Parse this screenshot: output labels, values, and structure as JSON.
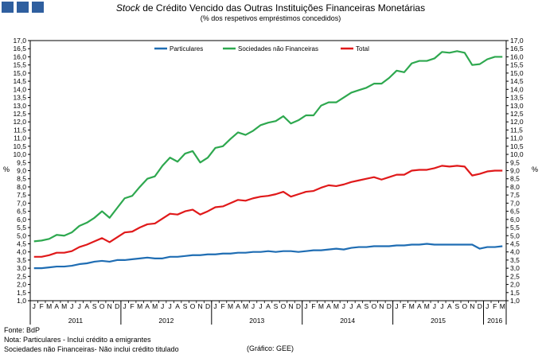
{
  "header": {
    "title_italic": "Stock",
    "title_rest": " de Crédito Vencido das Outras Instituições Financeiras Monetárias",
    "subtitle": "(% dos respetivos empréstimos concedidos)"
  },
  "colors": {
    "squares": "#2f5f9f",
    "particulares": "#1f6db3",
    "sociedades": "#2ea84f",
    "total": "#e0191a"
  },
  "footer": {
    "source": "Fonte: BdP",
    "note1": "Nota: Particulares - Inclui crédito a emigrantes",
    "note2": "Sociedades não Financeiras- Não inclui crédito titulado",
    "graphic": "(Gráfico: GEE)"
  },
  "chart_data": {
    "type": "line",
    "ylim": [
      1.0,
      17.0
    ],
    "ytick_step": 0.5,
    "ylabel_left": "%",
    "ylabel_right": "%",
    "x": [
      "Jan-2011",
      "Feb-2011",
      "Mar-2011",
      "Apr-2011",
      "May-2011",
      "Jun-2011",
      "Jul-2011",
      "Aug-2011",
      "Sep-2011",
      "Oct-2011",
      "Nov-2011",
      "Dec-2011",
      "Jan-2012",
      "Feb-2012",
      "Mar-2012",
      "Apr-2012",
      "May-2012",
      "Jun-2012",
      "Jul-2012",
      "Aug-2012",
      "Sep-2012",
      "Oct-2012",
      "Nov-2012",
      "Dec-2012",
      "Jan-2013",
      "Feb-2013",
      "Mar-2013",
      "Apr-2013",
      "May-2013",
      "Jun-2013",
      "Jul-2013",
      "Aug-2013",
      "Sep-2013",
      "Oct-2013",
      "Nov-2013",
      "Dec-2013",
      "Jan-2014",
      "Feb-2014",
      "Mar-2014",
      "Apr-2014",
      "May-2014",
      "Jun-2014",
      "Jul-2014",
      "Aug-2014",
      "Sep-2014",
      "Oct-2014",
      "Nov-2014",
      "Dec-2014",
      "Jan-2015",
      "Feb-2015",
      "Mar-2015",
      "Apr-2015",
      "May-2015",
      "Jun-2015",
      "Jul-2015",
      "Aug-2015",
      "Sep-2015",
      "Oct-2015",
      "Nov-2015",
      "Dec-2015",
      "Jan-2016",
      "Feb-2016",
      "Mar-2016"
    ],
    "month_labels": [
      "J",
      "F",
      "M",
      "A",
      "M",
      "J",
      "J",
      "A",
      "S",
      "O",
      "N",
      "D",
      "J",
      "F",
      "M",
      "A",
      "M",
      "J",
      "J",
      "A",
      "S",
      "O",
      "N",
      "D",
      "J",
      "F",
      "M",
      "A",
      "M",
      "J",
      "J",
      "A",
      "S",
      "O",
      "N",
      "D",
      "J",
      "F",
      "M",
      "A",
      "M",
      "J",
      "J",
      "A",
      "S",
      "O",
      "N",
      "D",
      "J",
      "F",
      "M",
      "A",
      "M",
      "J",
      "J",
      "A",
      "S",
      "O",
      "N",
      "D",
      "J",
      "F",
      "M"
    ],
    "years": [
      {
        "label": "2011",
        "start": 0,
        "count": 12
      },
      {
        "label": "2012",
        "start": 12,
        "count": 12
      },
      {
        "label": "2013",
        "start": 24,
        "count": 12
      },
      {
        "label": "2014",
        "start": 36,
        "count": 12
      },
      {
        "label": "2015",
        "start": 48,
        "count": 12
      },
      {
        "label": "2016",
        "start": 60,
        "count": 3
      }
    ],
    "legend_placement": "top-center",
    "series": [
      {
        "name": "Particulares",
        "color": "#1f6db3",
        "values": [
          3.0,
          3.0,
          3.05,
          3.1,
          3.1,
          3.15,
          3.25,
          3.3,
          3.4,
          3.45,
          3.4,
          3.5,
          3.5,
          3.55,
          3.6,
          3.65,
          3.6,
          3.6,
          3.7,
          3.7,
          3.75,
          3.8,
          3.8,
          3.85,
          3.85,
          3.9,
          3.9,
          3.95,
          3.95,
          4.0,
          4.0,
          4.05,
          4.0,
          4.05,
          4.05,
          4.0,
          4.05,
          4.1,
          4.1,
          4.15,
          4.2,
          4.15,
          4.25,
          4.3,
          4.3,
          4.35,
          4.35,
          4.35,
          4.4,
          4.4,
          4.45,
          4.45,
          4.5,
          4.45,
          4.45,
          4.45,
          4.45,
          4.45,
          4.45,
          4.2,
          4.3,
          4.3,
          4.35
        ]
      },
      {
        "name": "Sociedades não Financeiras",
        "color": "#2ea84f",
        "values": [
          4.65,
          4.7,
          4.8,
          5.05,
          5.0,
          5.2,
          5.6,
          5.8,
          6.1,
          6.5,
          6.1,
          6.7,
          7.3,
          7.45,
          8.0,
          8.5,
          8.65,
          9.3,
          9.8,
          9.55,
          10.05,
          10.2,
          9.5,
          9.8,
          10.4,
          10.5,
          10.95,
          11.35,
          11.2,
          11.45,
          11.8,
          11.95,
          12.05,
          12.35,
          11.9,
          12.1,
          12.4,
          12.4,
          13.0,
          13.2,
          13.2,
          13.5,
          13.8,
          13.95,
          14.1,
          14.35,
          14.35,
          14.7,
          15.15,
          15.05,
          15.6,
          15.75,
          15.75,
          15.9,
          16.3,
          16.25,
          16.35,
          16.25,
          15.5,
          15.55,
          15.85,
          16.0,
          16.0
        ]
      },
      {
        "name": "Total",
        "color": "#e0191a",
        "values": [
          3.7,
          3.7,
          3.8,
          3.95,
          3.95,
          4.05,
          4.3,
          4.45,
          4.65,
          4.85,
          4.6,
          4.9,
          5.2,
          5.25,
          5.5,
          5.7,
          5.75,
          6.05,
          6.35,
          6.3,
          6.5,
          6.6,
          6.3,
          6.5,
          6.75,
          6.8,
          7.0,
          7.2,
          7.15,
          7.3,
          7.4,
          7.45,
          7.55,
          7.7,
          7.4,
          7.55,
          7.7,
          7.75,
          7.95,
          8.1,
          8.05,
          8.15,
          8.3,
          8.4,
          8.5,
          8.6,
          8.45,
          8.6,
          8.75,
          8.75,
          9.0,
          9.05,
          9.05,
          9.15,
          9.3,
          9.25,
          9.3,
          9.25,
          8.7,
          8.8,
          8.95,
          9.0,
          9.0
        ]
      }
    ]
  }
}
